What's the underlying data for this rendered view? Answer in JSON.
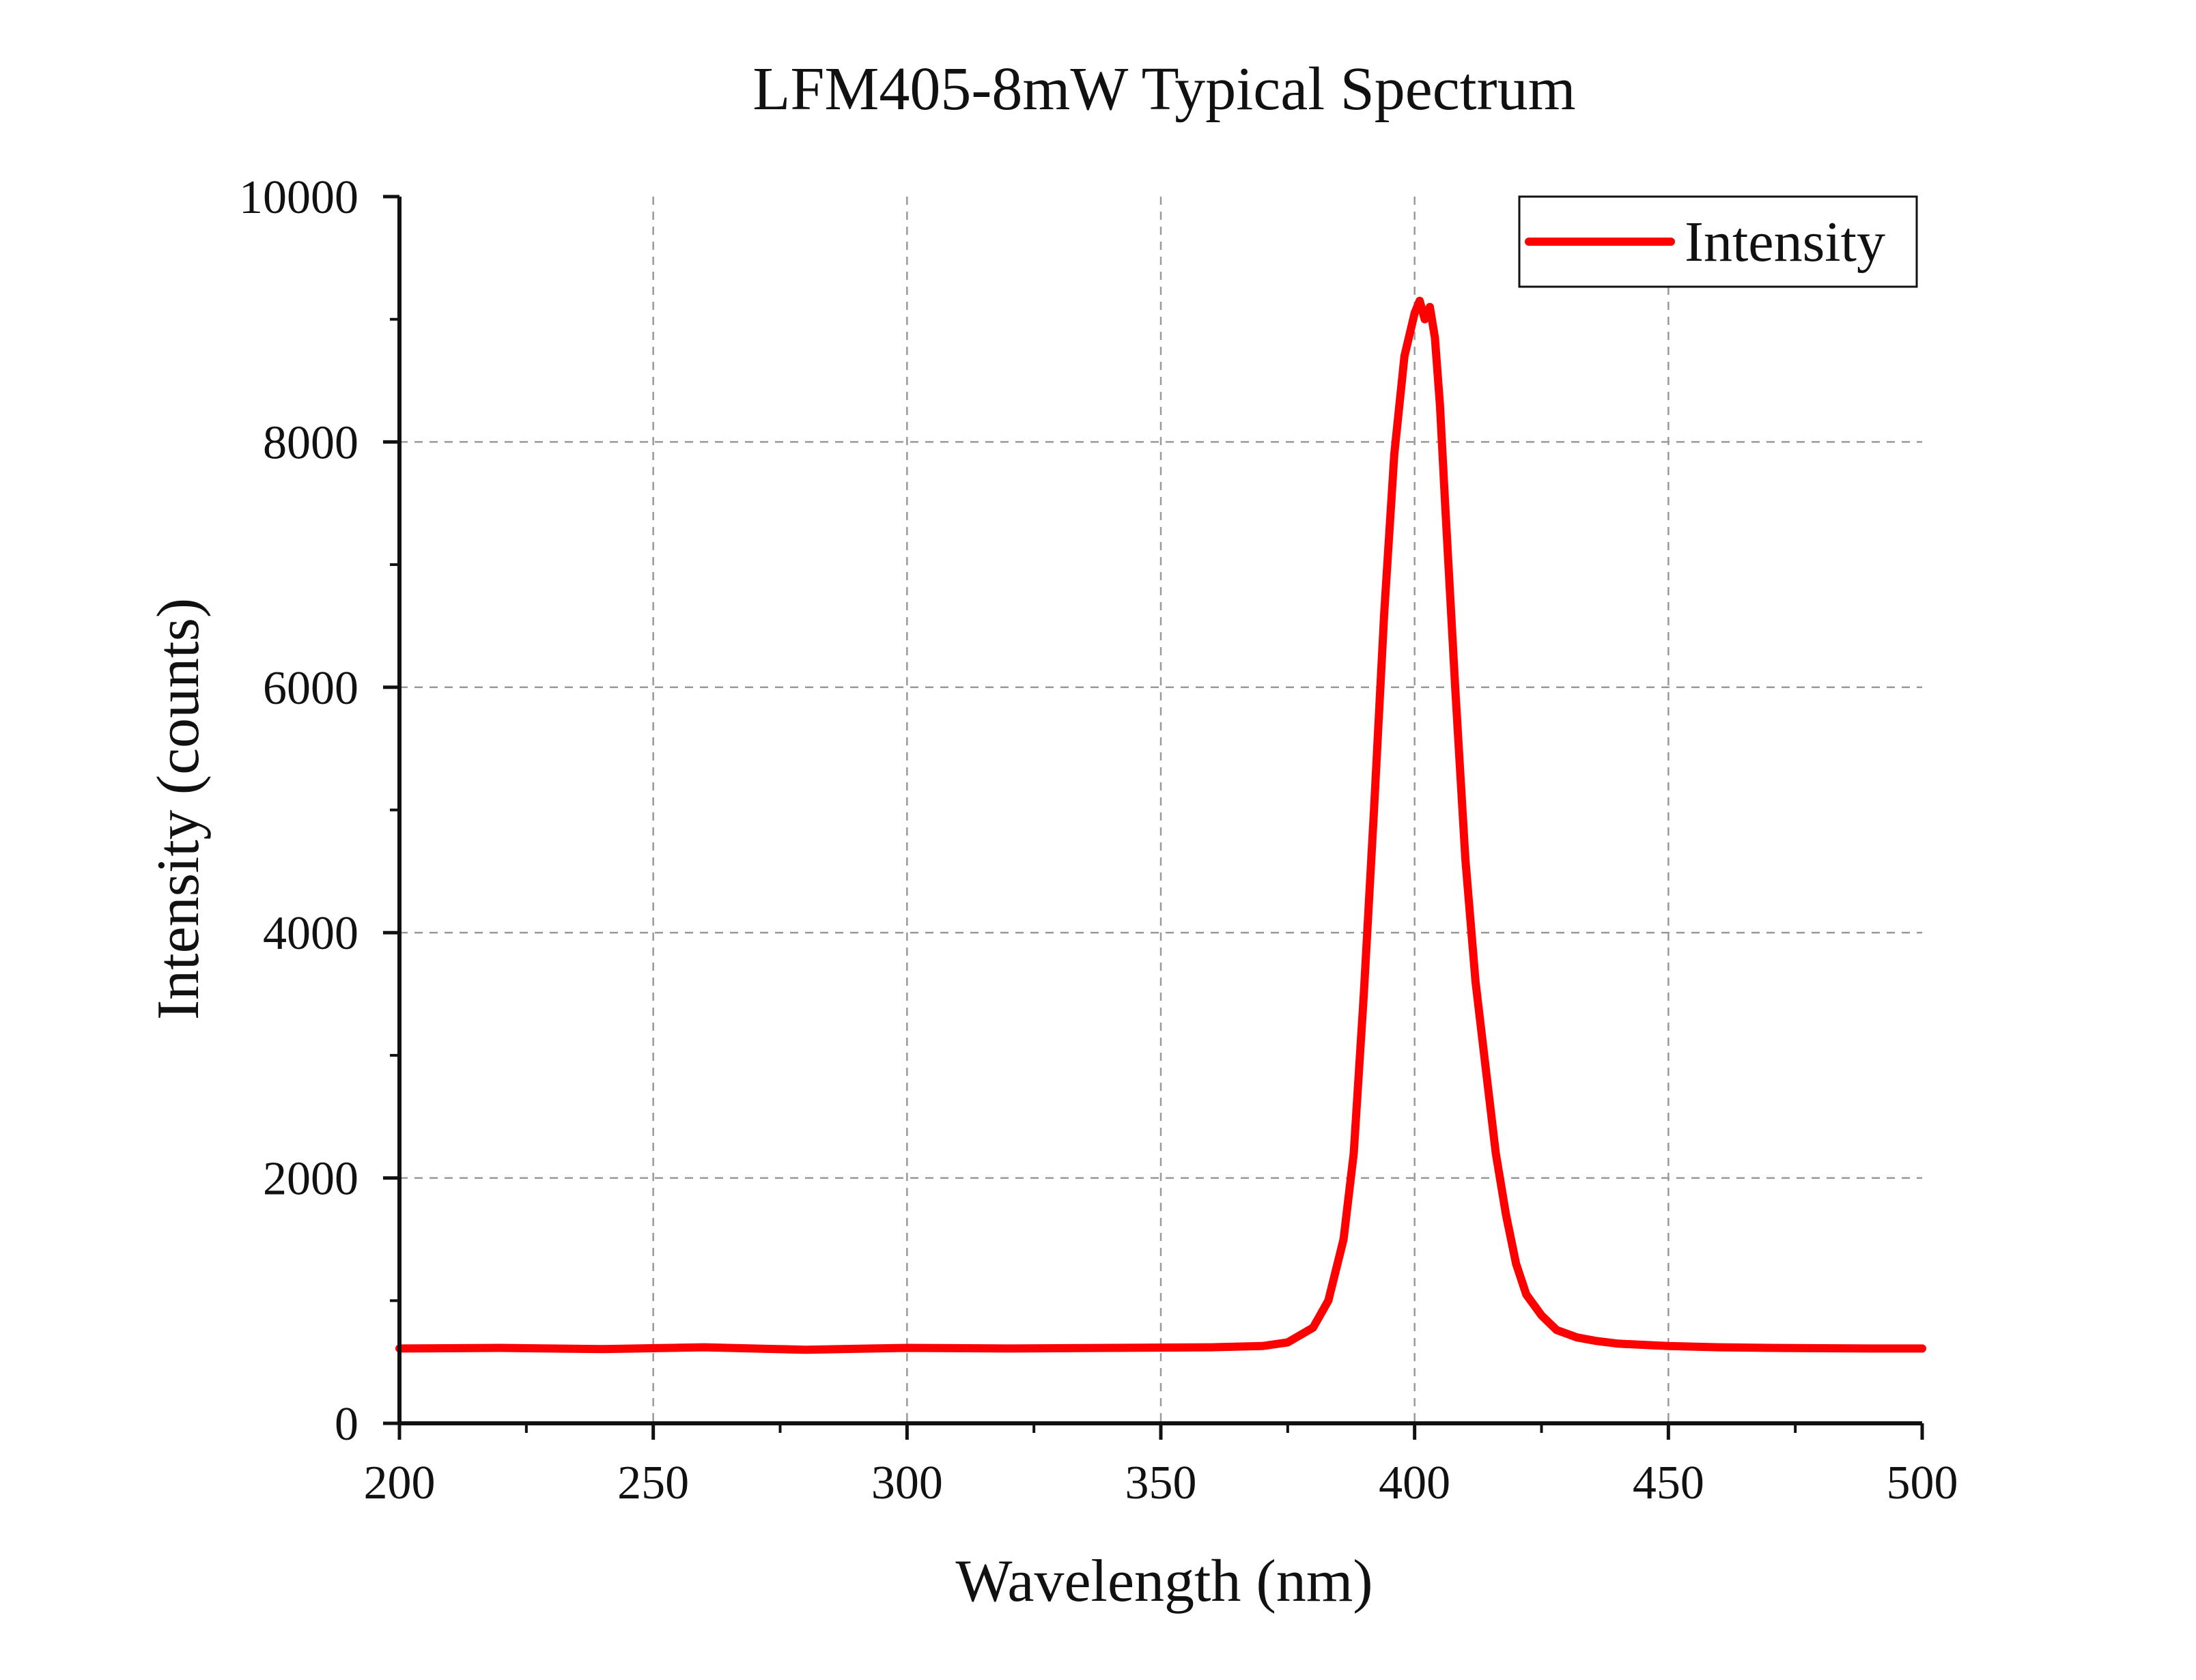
{
  "chart_data": {
    "type": "line",
    "title": "LFM405-8mW Typical Spectrum",
    "xlabel": "Wavelength (nm)",
    "ylabel": "Intensity (counts)",
    "xlim": [
      200,
      500
    ],
    "ylim": [
      0,
      10000
    ],
    "x_ticks": [
      200,
      250,
      300,
      350,
      400,
      450,
      500
    ],
    "y_ticks": [
      0,
      2000,
      4000,
      6000,
      8000,
      10000
    ],
    "x_tick_labels": [
      "200",
      "250",
      "300",
      "350",
      "400",
      "450",
      "500"
    ],
    "y_tick_labels": [
      "0",
      "2000",
      "4000",
      "6000",
      "8000",
      "10000"
    ],
    "grid": true,
    "legend_position": "top-right",
    "series": [
      {
        "name": "Intensity",
        "color": "#ff0000",
        "x": [
          200,
          220,
          240,
          260,
          280,
          300,
          320,
          340,
          360,
          370,
          375,
          380,
          383,
          386,
          388,
          390,
          392,
          394,
          396,
          398,
          400,
          401,
          402,
          403,
          404,
          405,
          406,
          408,
          410,
          412,
          414,
          416,
          418,
          420,
          422,
          425,
          428,
          432,
          436,
          440,
          445,
          450,
          460,
          470,
          480,
          490,
          500
        ],
        "y": [
          610,
          615,
          605,
          620,
          600,
          615,
          610,
          615,
          620,
          630,
          660,
          780,
          1000,
          1500,
          2200,
          3500,
          5000,
          6600,
          7900,
          8700,
          9050,
          9150,
          9000,
          9100,
          8850,
          8300,
          7500,
          6000,
          4600,
          3600,
          2900,
          2200,
          1700,
          1300,
          1050,
          880,
          760,
          700,
          670,
          650,
          640,
          630,
          620,
          615,
          612,
          610,
          610
        ]
      }
    ]
  }
}
